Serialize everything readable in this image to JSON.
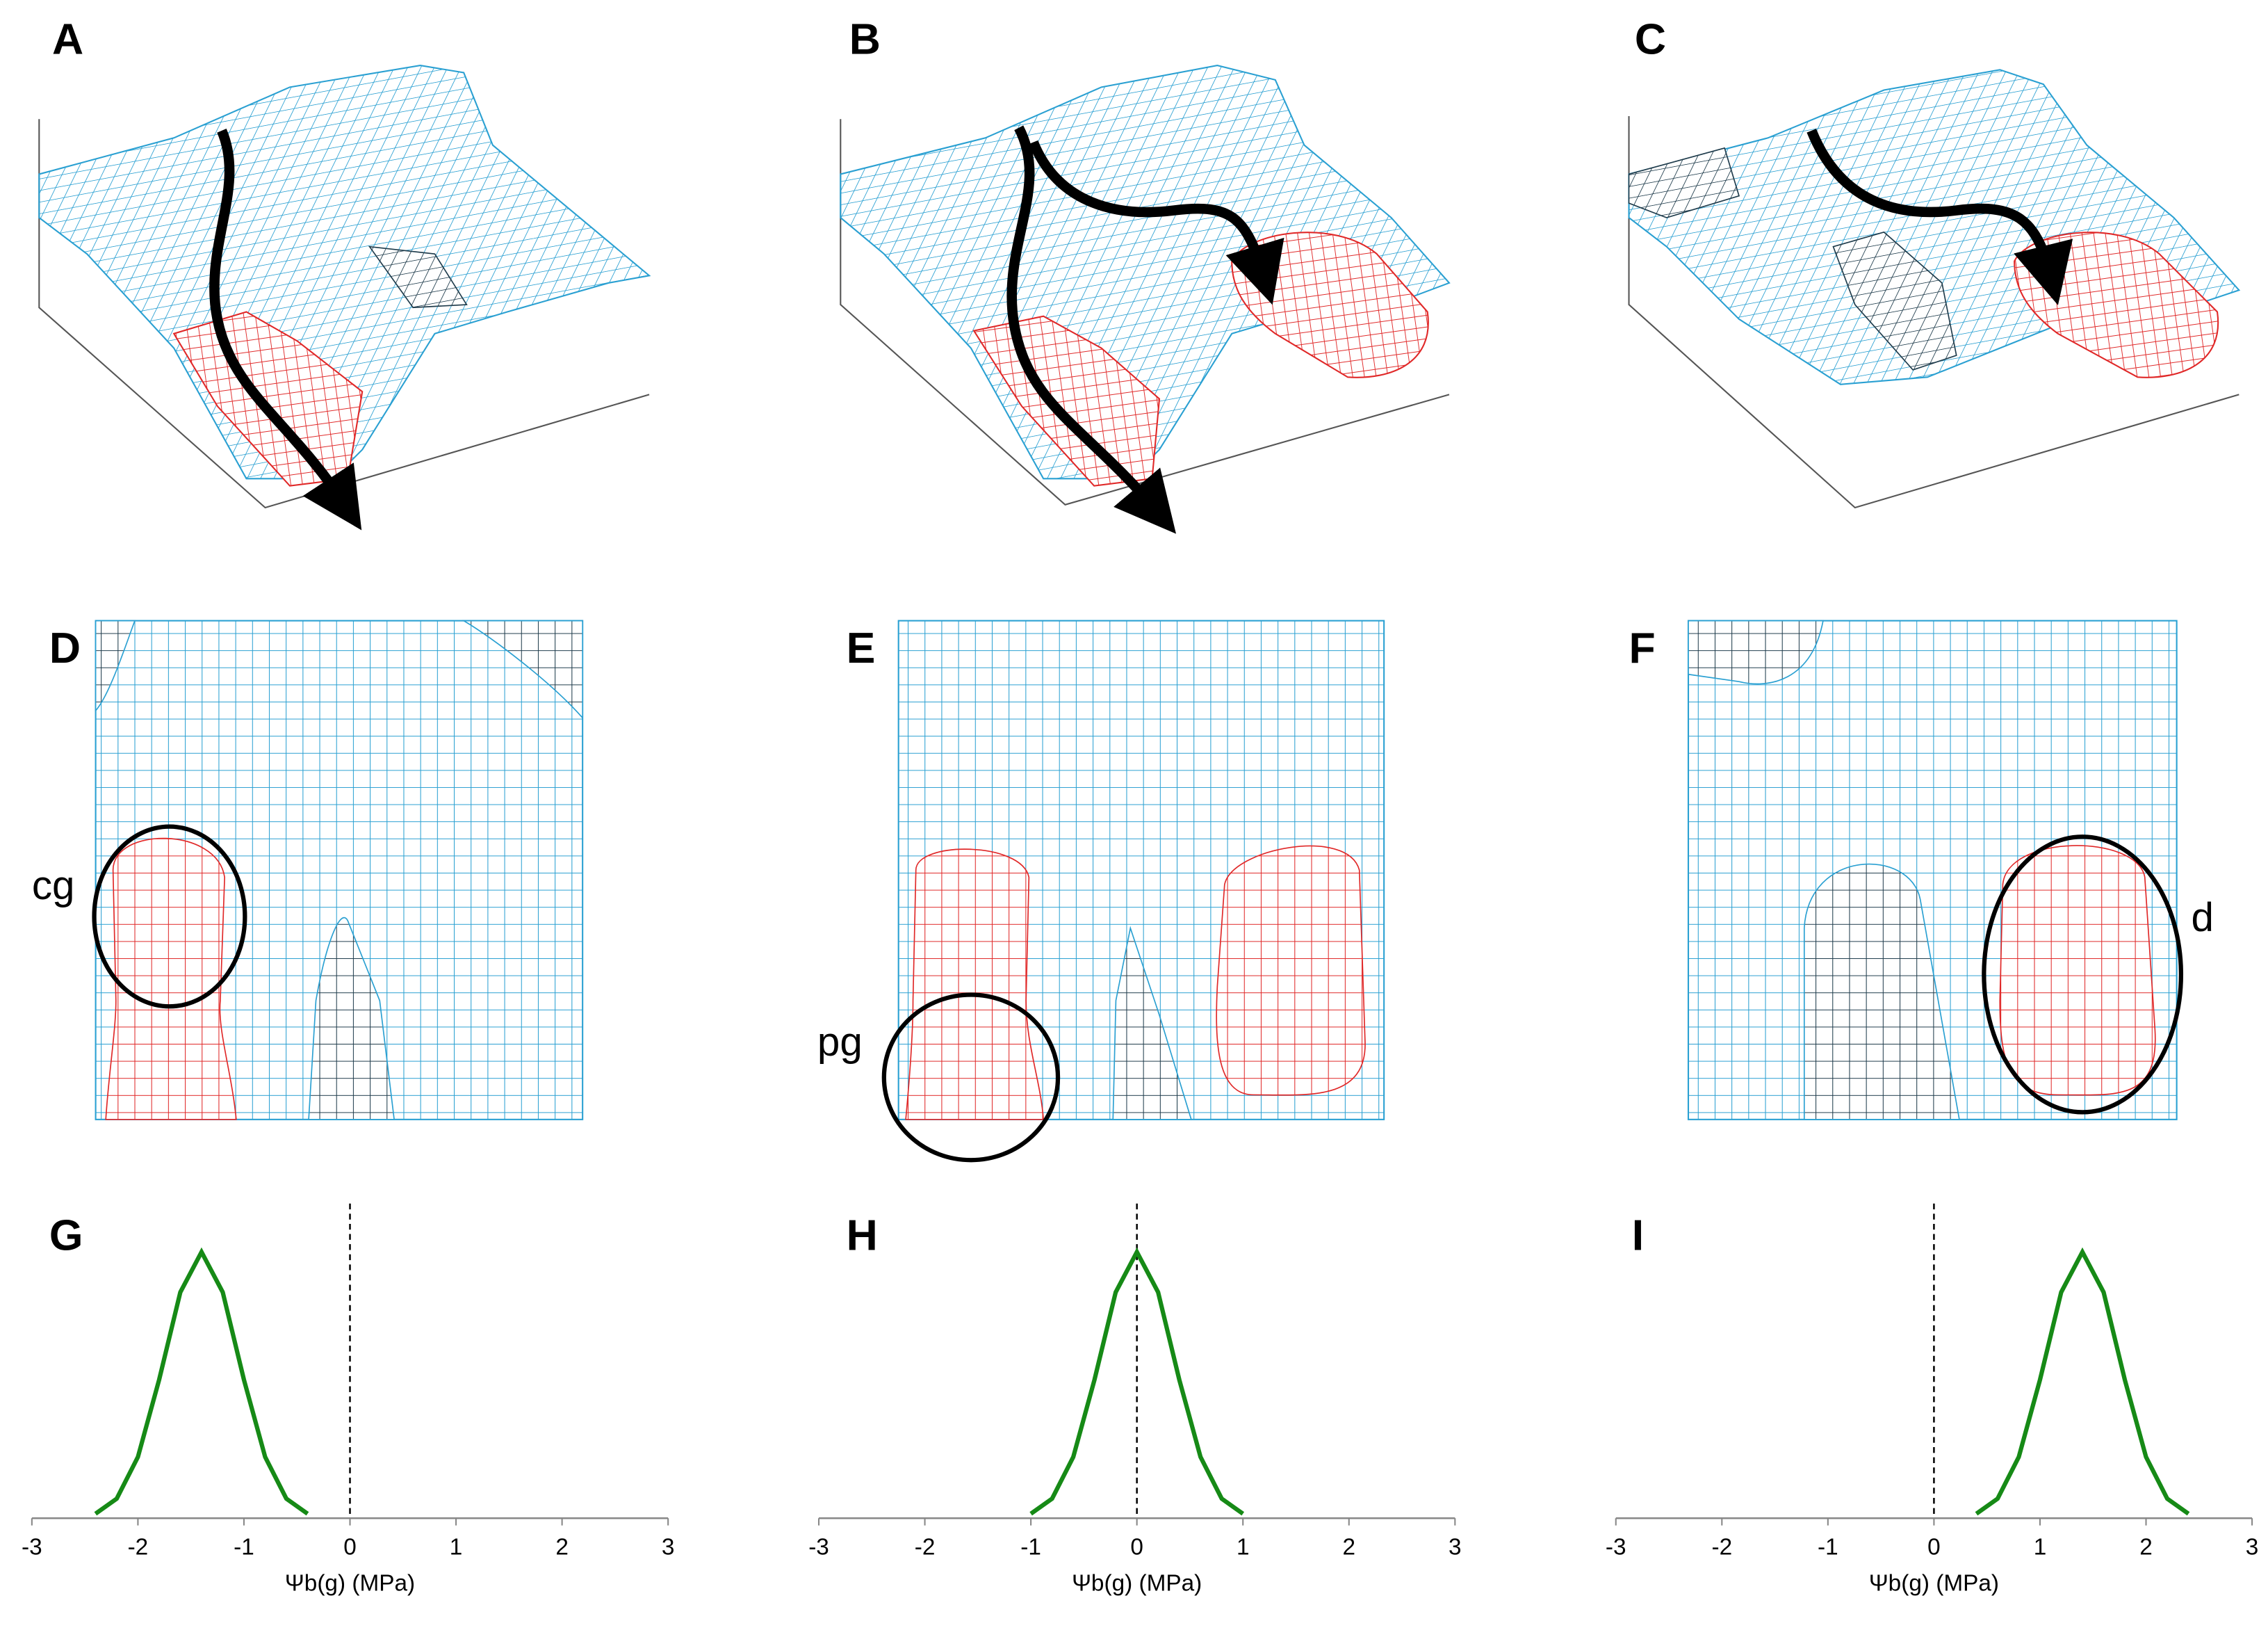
{
  "panels": {
    "labels": [
      "A",
      "B",
      "C",
      "D",
      "E",
      "F",
      "G",
      "H",
      "I"
    ]
  },
  "annotations": [
    "cg",
    "pg",
    "d"
  ],
  "chart_data": [
    {
      "type": "line",
      "xlabel": "Ψb(g) (MPa)",
      "xlim": [
        -3,
        3
      ],
      "xticks": [
        -3,
        -2,
        -1,
        0,
        1,
        2,
        3
      ],
      "ylim": [
        0,
        1
      ],
      "vline": 0,
      "color": "#168a16",
      "x": [
        -2.4,
        -2.2,
        -2.0,
        -1.8,
        -1.6,
        -1.4,
        -1.2,
        -1.0,
        -0.8,
        -0.6,
        -0.4
      ],
      "values": [
        0.015,
        0.066,
        0.207,
        0.468,
        0.764,
        0.9,
        0.764,
        0.468,
        0.207,
        0.066,
        0.015
      ]
    },
    {
      "type": "line",
      "xlabel": "Ψb(g) (MPa)",
      "xlim": [
        -3,
        3
      ],
      "xticks": [
        -3,
        -2,
        -1,
        0,
        1,
        2,
        3
      ],
      "ylim": [
        0,
        1
      ],
      "vline": 0,
      "color": "#168a16",
      "x": [
        -1.0,
        -0.8,
        -0.6,
        -0.4,
        -0.2,
        0,
        0.2,
        0.4,
        0.6,
        0.8,
        1.0
      ],
      "values": [
        0.015,
        0.066,
        0.207,
        0.468,
        0.764,
        0.9,
        0.764,
        0.468,
        0.207,
        0.066,
        0.015
      ]
    },
    {
      "type": "line",
      "xlabel": "Ψb(g) (MPa)",
      "xlim": [
        -3,
        3
      ],
      "xticks": [
        -3,
        -2,
        -1,
        0,
        1,
        2,
        3
      ],
      "ylim": [
        0,
        1
      ],
      "vline": 0,
      "color": "#168a16",
      "x": [
        0.4,
        0.6,
        0.8,
        1.0,
        1.2,
        1.4,
        1.6,
        1.8,
        2.0,
        2.2,
        2.4
      ],
      "values": [
        0.015,
        0.066,
        0.207,
        0.468,
        0.764,
        0.9,
        0.764,
        0.468,
        0.207,
        0.066,
        0.015
      ]
    }
  ]
}
